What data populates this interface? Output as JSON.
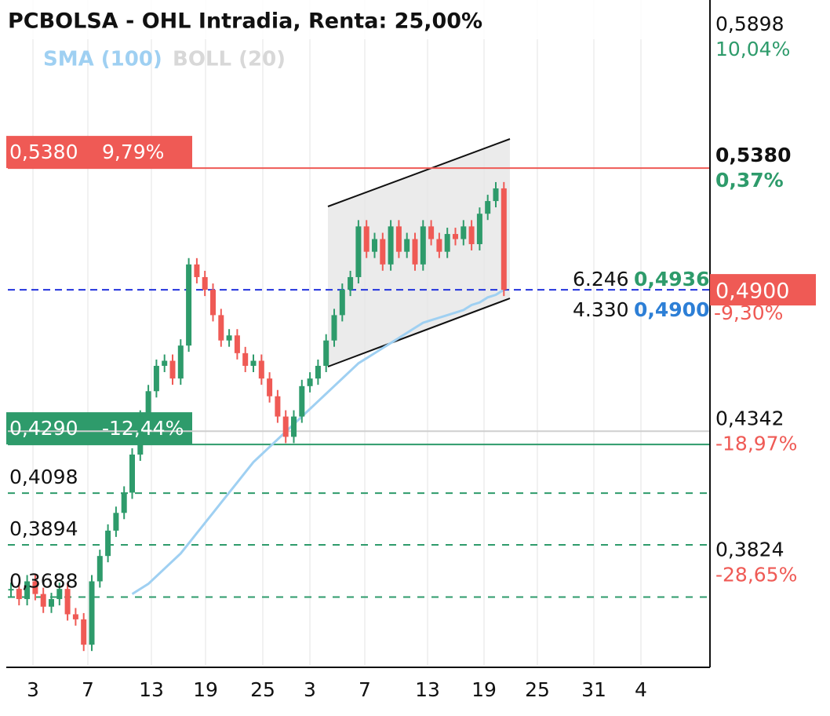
{
  "chart_data": {
    "type": "candlestick",
    "title": "PCBOLSA - OHL Intradia, Renta: 25,00%",
    "indicators": [
      {
        "name": "SMA (100)",
        "color": "#9fd0f2"
      },
      {
        "name": "BOLL (20)",
        "color": "#d8d8d8"
      }
    ],
    "closes": [
      0.372,
      0.368,
      0.375,
      0.37,
      0.365,
      0.368,
      0.372,
      0.362,
      0.36,
      0.35,
      0.375,
      0.385,
      0.395,
      0.402,
      0.41,
      0.425,
      0.44,
      0.45,
      0.46,
      0.462,
      0.455,
      0.468,
      0.5,
      0.495,
      0.49,
      0.48,
      0.47,
      0.472,
      0.465,
      0.46,
      0.462,
      0.455,
      0.448,
      0.44,
      0.432,
      0.44,
      0.452,
      0.455,
      0.46,
      0.47,
      0.48,
      0.49,
      0.495,
      0.515,
      0.505,
      0.51,
      0.5,
      0.515,
      0.505,
      0.51,
      0.5,
      0.515,
      0.51,
      0.505,
      0.512,
      0.51,
      0.515,
      0.508,
      0.52,
      0.525,
      0.53,
      0.49
    ],
    "sma": [
      null,
      null,
      null,
      null,
      null,
      null,
      null,
      null,
      null,
      null,
      null,
      null,
      null,
      null,
      null,
      0.37,
      0.372,
      0.374,
      0.377,
      0.38,
      0.383,
      0.386,
      0.39,
      0.394,
      0.398,
      0.402,
      0.406,
      0.41,
      0.414,
      0.418,
      0.422,
      0.425,
      0.428,
      0.431,
      0.434,
      0.437,
      0.44,
      0.443,
      0.446,
      0.449,
      0.452,
      0.455,
      0.458,
      0.461,
      0.463,
      0.465,
      0.467,
      0.469,
      0.471,
      0.473,
      0.475,
      0.477,
      0.478,
      0.479,
      0.48,
      0.481,
      0.482,
      0.484,
      0.485,
      0.487,
      0.488,
      0.49
    ],
    "ylim": [
      0.3417,
      0.6043
    ],
    "x_labels": [
      "3",
      "7",
      "13",
      "19",
      "25",
      "3",
      "7",
      "13",
      "19",
      "25",
      "31",
      "4"
    ],
    "right_labels": [
      {
        "value": 0.5898,
        "label": "0,5898",
        "pct": "10,04%"
      },
      {
        "value": 0.538,
        "label": "0,5380",
        "pct": "0,37%"
      },
      {
        "value": 0.49,
        "label": "0,4900",
        "pct": "-9,30%"
      },
      {
        "value": 0.4342,
        "label": "0,4342",
        "pct": "-18,97%"
      },
      {
        "value": 0.3824,
        "label": "0,3824",
        "pct": "-28,65%"
      }
    ],
    "levels": [
      {
        "value": 0.538,
        "label": "0,5380",
        "pct": "9,79%",
        "color": "#ef5a55"
      },
      {
        "value": 0.429,
        "label": "0,4290",
        "pct": "-12,44%",
        "color": "#2e9b6b"
      },
      {
        "value": 0.4098,
        "label": "0,4098",
        "color": "#2e9b6b"
      },
      {
        "value": 0.3894,
        "label": "0,3894",
        "color": "#2e9b6b"
      },
      {
        "value": 0.3688,
        "label": "0,3688",
        "color": "#2e9b6b"
      }
    ],
    "volume_labels": [
      {
        "volume": "6.246",
        "price": "0,4936"
      },
      {
        "volume": "4.330",
        "price": "0,4900"
      }
    ]
  }
}
